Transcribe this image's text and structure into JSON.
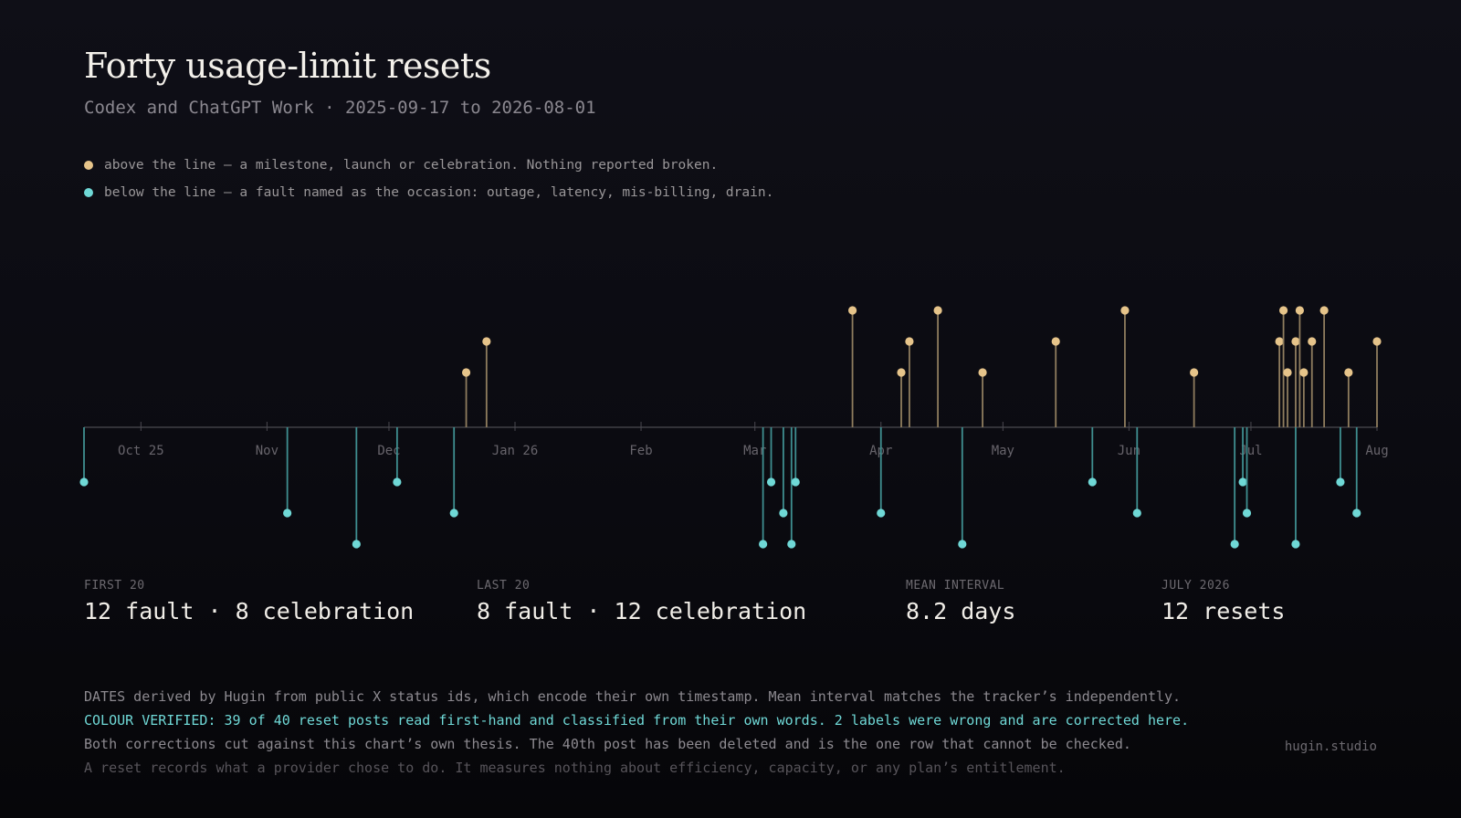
{
  "title": "Forty usage-limit resets",
  "subtitle": "Codex and ChatGPT Work · 2025-09-17 to 2026-08-01",
  "legend": [
    {
      "label": "above the line — a milestone, launch or celebration. Nothing reported broken.",
      "color": "#e6c48a"
    },
    {
      "label": "below the line — a fault named as the occasion: outage, latency, mis-billing, drain.",
      "color": "#6fd8d6"
    }
  ],
  "chart_data": {
    "type": "timeline",
    "x_range": [
      "2025-09-17",
      "2026-08-01"
    ],
    "tick_labels": [
      {
        "date": "2025-10-01",
        "label": "Oct 25"
      },
      {
        "date": "2025-11-01",
        "label": "Nov"
      },
      {
        "date": "2025-12-01",
        "label": "Dec"
      },
      {
        "date": "2026-01-01",
        "label": "Jan 26"
      },
      {
        "date": "2026-02-01",
        "label": "Feb"
      },
      {
        "date": "2026-03-01",
        "label": "Mar"
      },
      {
        "date": "2026-04-01",
        "label": "Apr"
      },
      {
        "date": "2026-05-01",
        "label": "May"
      },
      {
        "date": "2026-06-01",
        "label": "Jun"
      },
      {
        "date": "2026-07-01",
        "label": "Jul"
      },
      {
        "date": "2026-08-01",
        "label": "Aug"
      }
    ],
    "colors": {
      "celebration": "#e6c48a",
      "fault": "#6fd8d6"
    },
    "events": [
      {
        "date": "2025-09-17",
        "kind": "fault"
      },
      {
        "date": "2025-11-06",
        "kind": "fault"
      },
      {
        "date": "2025-11-23",
        "kind": "fault"
      },
      {
        "date": "2025-12-03",
        "kind": "fault"
      },
      {
        "date": "2025-12-17",
        "kind": "fault"
      },
      {
        "date": "2025-12-20",
        "kind": "celebration"
      },
      {
        "date": "2025-12-25",
        "kind": "celebration"
      },
      {
        "date": "2026-03-03",
        "kind": "fault"
      },
      {
        "date": "2026-03-05",
        "kind": "fault"
      },
      {
        "date": "2026-03-08",
        "kind": "fault"
      },
      {
        "date": "2026-03-10",
        "kind": "fault"
      },
      {
        "date": "2026-03-11",
        "kind": "fault"
      },
      {
        "date": "2026-03-25",
        "kind": "celebration"
      },
      {
        "date": "2026-04-01",
        "kind": "fault"
      },
      {
        "date": "2026-04-06",
        "kind": "celebration"
      },
      {
        "date": "2026-04-08",
        "kind": "celebration"
      },
      {
        "date": "2026-04-15",
        "kind": "celebration"
      },
      {
        "date": "2026-04-21",
        "kind": "fault"
      },
      {
        "date": "2026-04-26",
        "kind": "celebration"
      },
      {
        "date": "2026-05-14",
        "kind": "celebration"
      },
      {
        "date": "2026-05-23",
        "kind": "fault"
      },
      {
        "date": "2026-05-31",
        "kind": "celebration"
      },
      {
        "date": "2026-06-03",
        "kind": "fault"
      },
      {
        "date": "2026-06-17",
        "kind": "celebration"
      },
      {
        "date": "2026-06-27",
        "kind": "fault"
      },
      {
        "date": "2026-06-29",
        "kind": "fault"
      },
      {
        "date": "2026-06-30",
        "kind": "fault"
      },
      {
        "date": "2026-07-08",
        "kind": "celebration"
      },
      {
        "date": "2026-07-09",
        "kind": "celebration"
      },
      {
        "date": "2026-07-10",
        "kind": "celebration"
      },
      {
        "date": "2026-07-12",
        "kind": "fault"
      },
      {
        "date": "2026-07-12",
        "kind": "celebration"
      },
      {
        "date": "2026-07-13",
        "kind": "celebration"
      },
      {
        "date": "2026-07-14",
        "kind": "celebration"
      },
      {
        "date": "2026-07-16",
        "kind": "celebration"
      },
      {
        "date": "2026-07-19",
        "kind": "celebration"
      },
      {
        "date": "2026-07-23",
        "kind": "fault"
      },
      {
        "date": "2026-07-25",
        "kind": "celebration"
      },
      {
        "date": "2026-07-27",
        "kind": "fault"
      },
      {
        "date": "2026-08-01",
        "kind": "celebration"
      }
    ]
  },
  "stats": [
    {
      "label": "FIRST 20",
      "value": "12 fault · 8 celebration"
    },
    {
      "label": "LAST 20",
      "value": "8 fault · 12 celebration"
    },
    {
      "label": "MEAN INTERVAL",
      "value": "8.2 days"
    },
    {
      "label": "JULY 2026",
      "value": "12 resets"
    }
  ],
  "notes": [
    "DATES derived by Hugin from public X status ids, which encode their own timestamp. Mean interval matches the tracker’s independently.",
    "COLOUR VERIFIED: 39 of 40 reset posts read first-hand and classified from their own words. 2 labels were wrong and are corrected here.",
    "Both corrections cut against this chart’s own thesis. The 40th post has been deleted and is the one row that cannot be checked.",
    "A reset records what a provider chose to do. It measures nothing about efficiency, capacity, or any plan’s entitlement."
  ],
  "brand": "hugin.studio"
}
